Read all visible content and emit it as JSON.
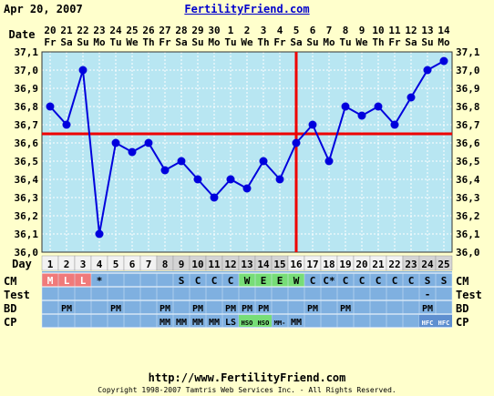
{
  "header": {
    "date_label": "Apr 20, 2007",
    "site": "FertilityFriend.com"
  },
  "footer": {
    "url": "http://www.FertilityFriend.com",
    "copyright": "Copyright 1998-2007 Tamtris Web Services Inc. - All Rights Reserved."
  },
  "colors": {
    "background": "#ffffcc",
    "plot": "#b8e6f2",
    "line": "#0000dd",
    "coverline": "#ee0000",
    "row_blue": "#7fb0e0",
    "row_blue_dark": "#5e8fd0",
    "menses": "#f07a7a",
    "egg_white": "#77dd77"
  },
  "chart_data": {
    "type": "line",
    "row_labels": {
      "date": "Date",
      "day": "Day",
      "cm": "CM",
      "test": "Test",
      "bd": "BD",
      "cp": "CP"
    },
    "date_numbers": [
      "20",
      "21",
      "22",
      "23",
      "24",
      "25",
      "26",
      "27",
      "28",
      "29",
      "30",
      "1",
      "2",
      "3",
      "4",
      "5",
      "6",
      "7",
      "8",
      "9",
      "10",
      "11",
      "12",
      "13",
      "14"
    ],
    "weekdays": [
      "Fr",
      "Sa",
      "Su",
      "Mo",
      "Tu",
      "We",
      "Th",
      "Fr",
      "Sa",
      "Su",
      "Mo",
      "Tu",
      "We",
      "Th",
      "Fr",
      "Sa",
      "Su",
      "Mo",
      "Tu",
      "We",
      "Th",
      "Fr",
      "Sa",
      "Su",
      "Mo"
    ],
    "cycle_days": [
      "1",
      "2",
      "3",
      "4",
      "5",
      "6",
      "7",
      "8",
      "9",
      "10",
      "11",
      "12",
      "13",
      "14",
      "15",
      "16",
      "17",
      "18",
      "19",
      "20",
      "21",
      "22",
      "23",
      "24",
      "25"
    ],
    "y_ticks": [
      "37,1",
      "37,0",
      "36,9",
      "36,8",
      "36,7",
      "36,6",
      "36,5",
      "36,4",
      "36,3",
      "36,2",
      "36,1",
      "36,0"
    ],
    "ylim": [
      36.0,
      37.1
    ],
    "temperatures": [
      36.8,
      36.7,
      37.0,
      36.1,
      36.6,
      36.55,
      36.6,
      36.45,
      36.5,
      36.4,
      36.3,
      36.4,
      36.35,
      36.5,
      36.4,
      36.6,
      36.7,
      36.5,
      36.8,
      36.75,
      36.8,
      36.7,
      36.85,
      37.0,
      37.05
    ],
    "coverline": 36.65,
    "ovulation_day": 16,
    "day_row_shading": [
      "white",
      "white",
      "white",
      "white",
      "white",
      "white",
      "white",
      "gray",
      "gray",
      "gray",
      "gray",
      "gray",
      "gray",
      "gray",
      "gray",
      "white",
      "white",
      "white",
      "white",
      "white",
      "white",
      "white",
      "gray",
      "gray",
      "gray"
    ],
    "cm": [
      "M",
      "L",
      "L",
      "*",
      "",
      "",
      "",
      "",
      "S",
      "C",
      "C",
      "C",
      "W",
      "E",
      "E",
      "W",
      "C",
      "C*",
      "C",
      "C",
      "C",
      "C",
      "C",
      "S",
      "S"
    ],
    "test": [
      "",
      "",
      "",
      "",
      "",
      "",
      "",
      "",
      "",
      "",
      "",
      "",
      "",
      "",
      "",
      "",
      "",
      "",
      "",
      "",
      "",
      "",
      "",
      "-",
      ""
    ],
    "bd": [
      "",
      "PM",
      "",
      "",
      "PM",
      "",
      "",
      "PM",
      "",
      "PM",
      "",
      "PM",
      "PM",
      "PM",
      "",
      "",
      "PM",
      "",
      "PM",
      "",
      "",
      "",
      "",
      "PM",
      ""
    ],
    "cp": [
      "",
      "",
      "",
      "",
      "",
      "",
      "",
      "MM",
      "MM",
      "MM",
      "MM",
      "LS",
      "HSO",
      "HSO",
      "MM-",
      "MM",
      "",
      "",
      "",
      "",
      "",
      "",
      "",
      "HFC",
      "HFC"
    ]
  }
}
